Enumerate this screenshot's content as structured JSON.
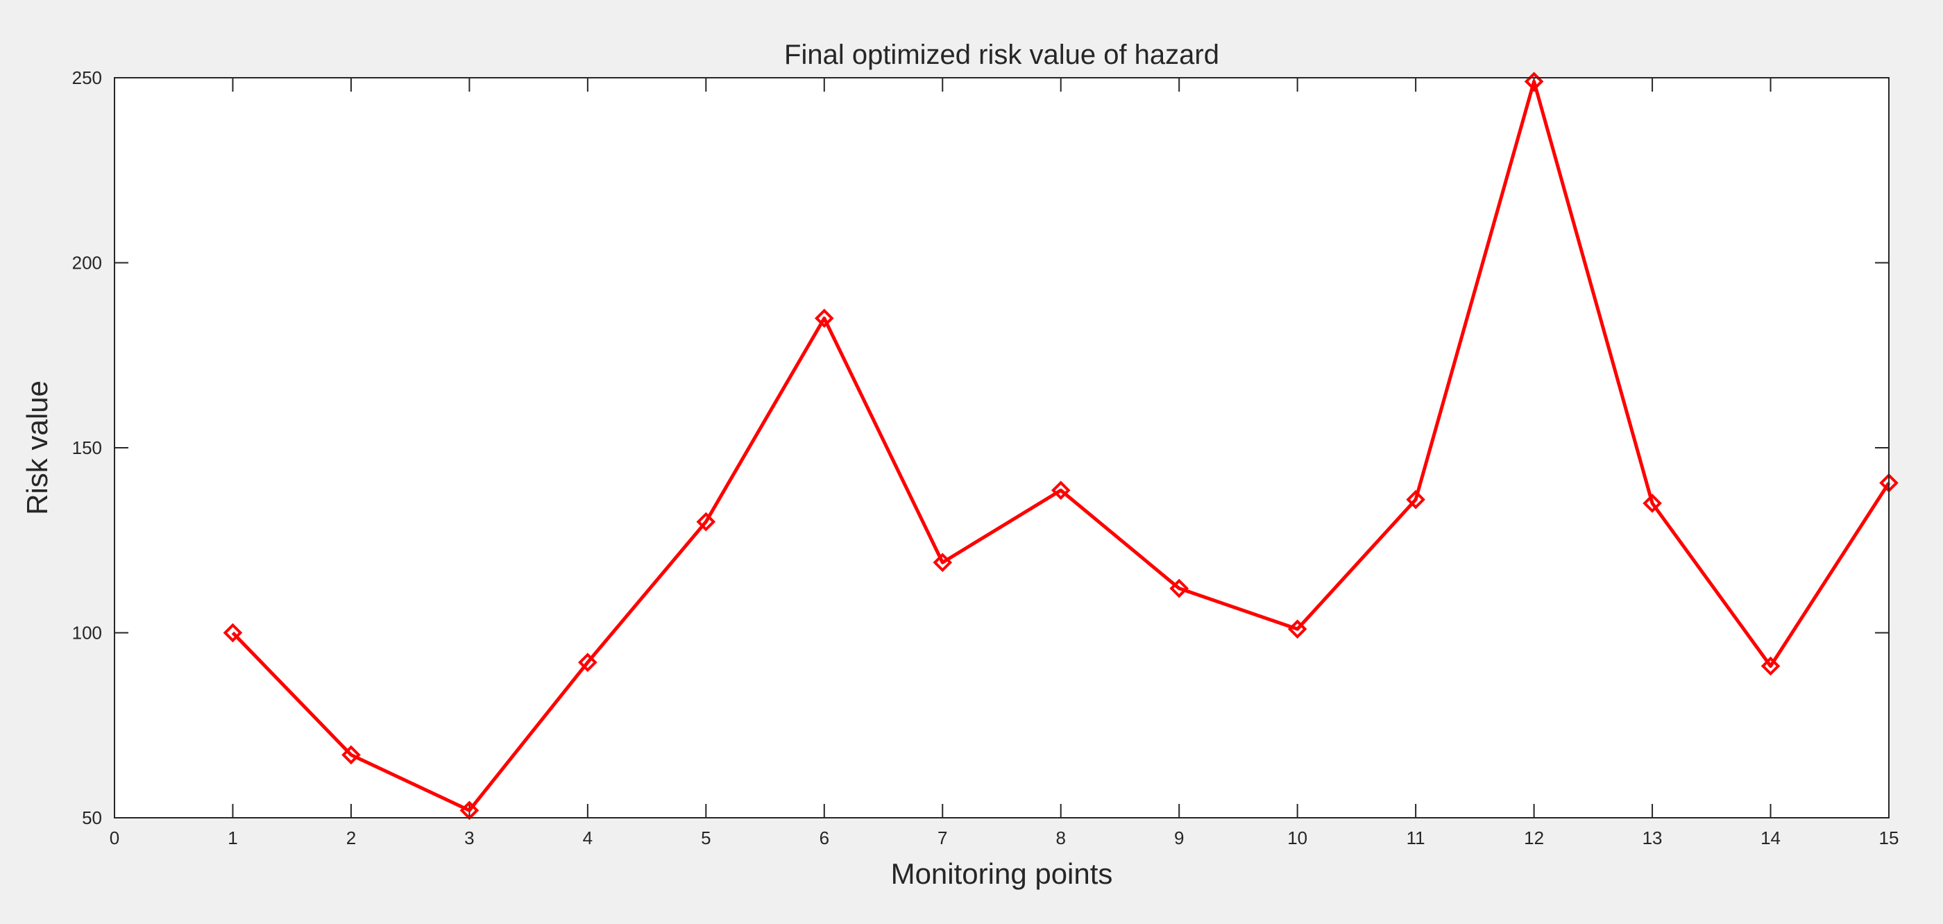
{
  "chart_data": {
    "type": "line",
    "title": "Final optimized risk value of hazard",
    "xlabel": "Monitoring points",
    "ylabel": "Risk value",
    "xlim": [
      0,
      15
    ],
    "ylim": [
      50,
      250
    ],
    "xticks": [
      0,
      1,
      2,
      3,
      4,
      5,
      6,
      7,
      8,
      9,
      10,
      11,
      12,
      13,
      14,
      15
    ],
    "yticks": [
      50,
      100,
      150,
      200,
      250
    ],
    "grid": false,
    "marker": "diamond",
    "series": [
      {
        "color": "#ff0000",
        "x": [
          1,
          2,
          3,
          4,
          5,
          6,
          7,
          8,
          9,
          10,
          11,
          12,
          13,
          14,
          15
        ],
        "y": [
          100,
          67,
          52,
          92,
          130,
          185,
          119,
          138.5,
          112,
          101,
          136,
          249,
          135,
          91,
          140.5
        ]
      }
    ]
  }
}
